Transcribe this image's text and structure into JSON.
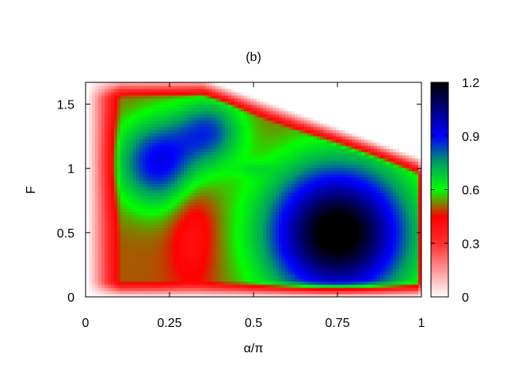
{
  "chart_data": {
    "type": "heatmap",
    "title": "(b)",
    "xlabel": "α/π",
    "ylabel": "F",
    "xlim": [
      0,
      1
    ],
    "ylim": [
      0,
      1.67
    ],
    "x_ticks": [
      {
        "value": 0,
        "label": "0"
      },
      {
        "value": 0.25,
        "label": "0.25"
      },
      {
        "value": 0.5,
        "label": "0.5"
      },
      {
        "value": 0.75,
        "label": "0.75"
      },
      {
        "value": 1,
        "label": "1"
      }
    ],
    "y_ticks": [
      {
        "value": 0,
        "label": "0"
      },
      {
        "value": 0.5,
        "label": "0.5"
      },
      {
        "value": 1,
        "label": "1"
      },
      {
        "value": 1.5,
        "label": "1.5"
      }
    ],
    "colorbar": {
      "range": [
        0,
        1.2
      ],
      "ticks": [
        {
          "value": 0,
          "label": "0"
        },
        {
          "value": 0.3,
          "label": "0.3"
        },
        {
          "value": 0.6,
          "label": "0.6"
        },
        {
          "value": 0.9,
          "label": "0.9"
        },
        {
          "value": 1.2,
          "label": "1.2"
        }
      ],
      "stops": [
        {
          "value": 0.0,
          "color": "#ffffff"
        },
        {
          "value": 0.3,
          "color": "#ff3030"
        },
        {
          "value": 0.45,
          "color": "#ff0000"
        },
        {
          "value": 0.6,
          "color": "#00ff00"
        },
        {
          "value": 0.75,
          "color": "#00a060"
        },
        {
          "value": 0.9,
          "color": "#0000ff"
        },
        {
          "value": 1.2,
          "color": "#000000"
        }
      ]
    },
    "features": {
      "background_level": 0.5,
      "blobs": [
        {
          "alpha": 0.75,
          "F": 0.5,
          "sx": 0.15,
          "sy": 0.38,
          "amp": 0.75,
          "note": "global maximum ~1.2"
        },
        {
          "alpha": 0.22,
          "F": 1.05,
          "sx": 0.09,
          "sy": 0.24,
          "amp": 0.42
        },
        {
          "alpha": 0.37,
          "F": 1.3,
          "sx": 0.07,
          "sy": 0.18,
          "amp": 0.3
        },
        {
          "alpha": 0.5,
          "F": 1.0,
          "sx": 0.04,
          "sy": 0.04,
          "amp": 0.06
        }
      ],
      "grid": false
    }
  }
}
